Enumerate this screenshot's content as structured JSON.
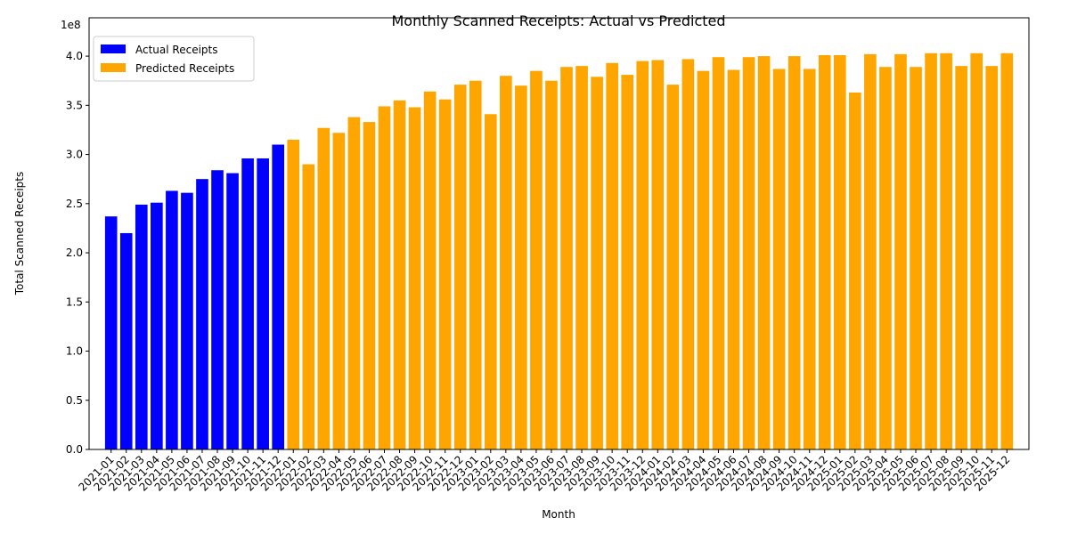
{
  "chart_data": {
    "type": "bar",
    "title": "Monthly Scanned Receipts: Actual vs Predicted",
    "x_label": "Month",
    "y_label": "Total Scanned Receipts",
    "y_offset_label": "1e8",
    "categories": [
      "2021-01",
      "2021-02",
      "2021-03",
      "2021-04",
      "2021-05",
      "2021-06",
      "2021-07",
      "2021-08",
      "2021-09",
      "2021-10",
      "2021-11",
      "2021-12",
      "2022-01",
      "2022-02",
      "2022-03",
      "2022-04",
      "2022-05",
      "2022-06",
      "2022-07",
      "2022-08",
      "2022-09",
      "2022-10",
      "2022-11",
      "2022-12",
      "2023-01",
      "2023-02",
      "2023-03",
      "2023-04",
      "2023-05",
      "2023-06",
      "2023-07",
      "2023-08",
      "2023-09",
      "2023-10",
      "2023-11",
      "2023-12",
      "2024-01",
      "2024-02",
      "2024-03",
      "2024-04",
      "2024-05",
      "2024-06",
      "2024-07",
      "2024-08",
      "2024-09",
      "2024-10",
      "2024-11",
      "2024-12",
      "2025-01",
      "2025-02",
      "2025-03",
      "2025-04",
      "2025-05",
      "2025-06",
      "2025-07",
      "2025-08",
      "2025-09",
      "2025-10",
      "2025-11",
      "2025-12"
    ],
    "series": [
      {
        "name": "Actual Receipts",
        "color": "#0000ff",
        "values": [
          2.37,
          2.2,
          2.49,
          2.51,
          2.63,
          2.61,
          2.75,
          2.84,
          2.81,
          2.96,
          2.96,
          3.1,
          null,
          null,
          null,
          null,
          null,
          null,
          null,
          null,
          null,
          null,
          null,
          null,
          null,
          null,
          null,
          null,
          null,
          null,
          null,
          null,
          null,
          null,
          null,
          null,
          null,
          null,
          null,
          null,
          null,
          null,
          null,
          null,
          null,
          null,
          null,
          null,
          null,
          null,
          null,
          null,
          null,
          null,
          null,
          null,
          null,
          null,
          null,
          null
        ]
      },
      {
        "name": "Predicted Receipts",
        "color": "#ffa500",
        "values": [
          null,
          null,
          null,
          null,
          null,
          null,
          null,
          null,
          null,
          null,
          null,
          null,
          3.15,
          2.9,
          3.27,
          3.22,
          3.38,
          3.33,
          3.49,
          3.55,
          3.48,
          3.64,
          3.56,
          3.71,
          3.75,
          3.41,
          3.8,
          3.7,
          3.85,
          3.75,
          3.89,
          3.9,
          3.79,
          3.93,
          3.81,
          3.95,
          3.96,
          3.71,
          3.97,
          3.85,
          3.99,
          3.86,
          3.99,
          4.0,
          3.87,
          4.0,
          3.87,
          4.01,
          4.01,
          3.63,
          4.02,
          3.89,
          4.02,
          3.89,
          4.03,
          4.03,
          3.9,
          4.03,
          3.9,
          4.03
        ]
      }
    ],
    "ylim": [
      0,
      4.39
    ],
    "yticks": [
      {
        "value": 0,
        "label": "0.0"
      },
      0.5,
      {
        "value": 1,
        "label": "1.0"
      },
      1.5,
      {
        "value": 2,
        "label": "2.0"
      },
      2.5,
      {
        "value": 3,
        "label": "3.0"
      },
      3.5,
      {
        "value": 4,
        "label": "4.0"
      }
    ],
    "legend": "upper left"
  }
}
